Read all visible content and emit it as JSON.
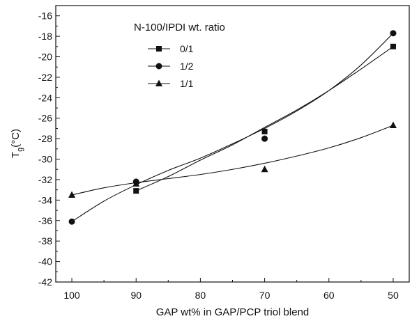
{
  "chart_data": {
    "type": "scatter",
    "title": "",
    "xlabel": "GAP wt% in GAP/PCP triol blend",
    "ylabel": {
      "main": "T",
      "sub": "g",
      "rest": "(°C)"
    },
    "x_reversed": true,
    "xlim": [
      102.5,
      47.5
    ],
    "ylim": [
      -42,
      -15
    ],
    "x_ticks": [
      100,
      90,
      80,
      70,
      60,
      50
    ],
    "y_ticks": [
      -42,
      -40,
      -38,
      -36,
      -34,
      -32,
      -30,
      -28,
      -26,
      -24,
      -22,
      -20,
      -18,
      -16
    ],
    "grid": false,
    "legend": {
      "title": "N-100/IPDI wt. ratio",
      "placement": "top-left"
    },
    "series": [
      {
        "name": "0/1",
        "marker": "square",
        "points": [
          [
            90,
            -33.1
          ],
          [
            70,
            -27.3
          ],
          [
            50,
            -19.0
          ]
        ],
        "fit": [
          [
            90,
            -33.1
          ],
          [
            85,
            -31.7
          ],
          [
            80,
            -30.1
          ],
          [
            75,
            -28.6
          ],
          [
            70,
            -26.9
          ],
          [
            65,
            -25.2
          ],
          [
            60,
            -23.3
          ],
          [
            55,
            -21.2
          ],
          [
            50,
            -19.0
          ]
        ]
      },
      {
        "name": "1/2",
        "marker": "circle",
        "points": [
          [
            100,
            -36.1
          ],
          [
            90,
            -32.2
          ],
          [
            70,
            -28.0
          ],
          [
            50,
            -17.7
          ]
        ],
        "fit": [
          [
            100,
            -36.1
          ],
          [
            95,
            -34.1
          ],
          [
            90,
            -32.5
          ],
          [
            85,
            -31.1
          ],
          [
            80,
            -29.9
          ],
          [
            75,
            -28.5
          ],
          [
            70,
            -27.0
          ],
          [
            65,
            -25.3
          ],
          [
            60,
            -23.3
          ],
          [
            55,
            -20.8
          ],
          [
            50,
            -17.7
          ]
        ]
      },
      {
        "name": "1/1",
        "marker": "triangle",
        "points": [
          [
            100,
            -33.5
          ],
          [
            90,
            -32.4
          ],
          [
            70,
            -31.0
          ],
          [
            50,
            -26.7
          ]
        ],
        "fit": [
          [
            100,
            -33.5
          ],
          [
            95,
            -32.8
          ],
          [
            90,
            -32.3
          ],
          [
            85,
            -31.9
          ],
          [
            80,
            -31.5
          ],
          [
            75,
            -31.0
          ],
          [
            70,
            -30.4
          ],
          [
            65,
            -29.7
          ],
          [
            60,
            -28.9
          ],
          [
            55,
            -27.9
          ],
          [
            50,
            -26.7
          ]
        ]
      }
    ]
  }
}
